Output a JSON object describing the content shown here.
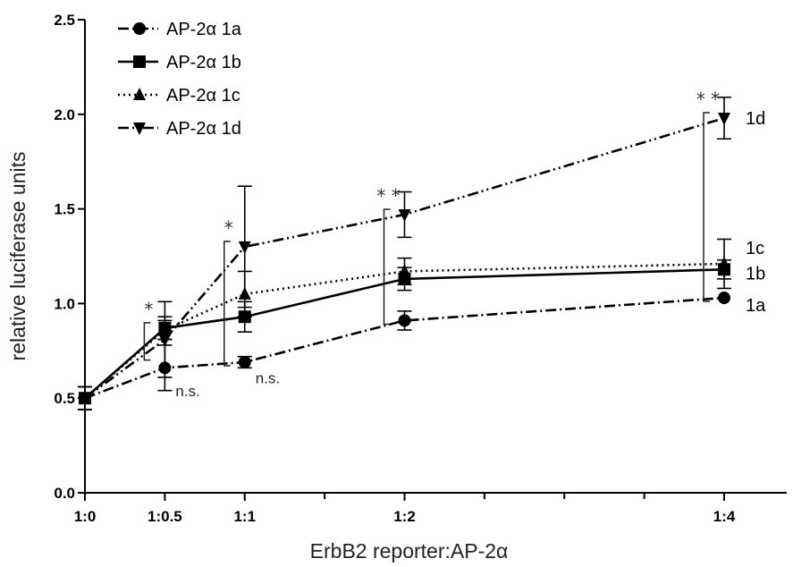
{
  "chart_data": {
    "type": "line",
    "xlabel": "ErbB2 reporter:AP-2α",
    "ylabel": "relative luciferase units",
    "ylim": [
      0,
      2.5
    ],
    "y_ticks": [
      "0.0",
      "0.5",
      "1.0",
      "1.5",
      "2.0",
      "2.5"
    ],
    "y_tick_values": [
      0,
      0.5,
      1.0,
      1.5,
      2.0,
      2.5
    ],
    "x_tick_values": [
      0,
      0.5,
      1,
      2,
      4
    ],
    "x_ticks": [
      "1:0",
      "1:0.5",
      "1:1",
      "1:2",
      "1:4"
    ],
    "legend_position": "top-left",
    "series": [
      {
        "name": "AP-2α 1a",
        "short": "1a",
        "marker": "circle",
        "dash": "dash-dot",
        "x": [
          0,
          0.5,
          1,
          2,
          4
        ],
        "values": [
          0.5,
          0.66,
          0.69,
          0.91,
          1.03
        ],
        "errors": [
          0.06,
          0.12,
          0.03,
          0.05,
          0.0
        ]
      },
      {
        "name": "AP-2α 1b",
        "short": "1b",
        "marker": "square",
        "dash": "solid",
        "x": [
          0,
          0.5,
          1,
          2,
          4
        ],
        "values": [
          0.5,
          0.87,
          0.93,
          1.13,
          1.18
        ],
        "errors": [
          0.06,
          0.06,
          0.08,
          0.06,
          0.05
        ]
      },
      {
        "name": "AP-2α 1c",
        "short": "1c",
        "marker": "triangle-up",
        "dash": "dotted",
        "x": [
          0,
          0.5,
          1,
          2,
          4
        ],
        "values": [
          0.5,
          0.86,
          1.05,
          1.17,
          1.21
        ],
        "errors": [
          0.06,
          0.05,
          0.12,
          0.07,
          0.13
        ]
      },
      {
        "name": "AP-2α 1d",
        "short": "1d",
        "marker": "triangle-down",
        "dash": "dash-dot-dot",
        "x": [
          0,
          0.5,
          1,
          2,
          4
        ],
        "values": [
          0.5,
          0.81,
          1.3,
          1.47,
          1.98
        ],
        "errors": [
          0.06,
          0.2,
          0.32,
          0.12,
          0.11
        ]
      }
    ],
    "significance": [
      {
        "x": 0.5,
        "label": "*",
        "y_low": 0.72,
        "y_high": 0.87
      },
      {
        "x": 1,
        "label": "*",
        "y_low": 0.69,
        "y_high": 1.3
      },
      {
        "x": 2,
        "label": "* *",
        "y_low": 0.91,
        "y_high": 1.47
      },
      {
        "x": 4,
        "label": "* *",
        "y_low": 1.03,
        "y_high": 1.98
      }
    ],
    "annotations": [
      {
        "text": "n.s.",
        "x": 0.5,
        "y": 0.51
      },
      {
        "text": "n.s.",
        "x": 1,
        "y": 0.58
      }
    ]
  }
}
